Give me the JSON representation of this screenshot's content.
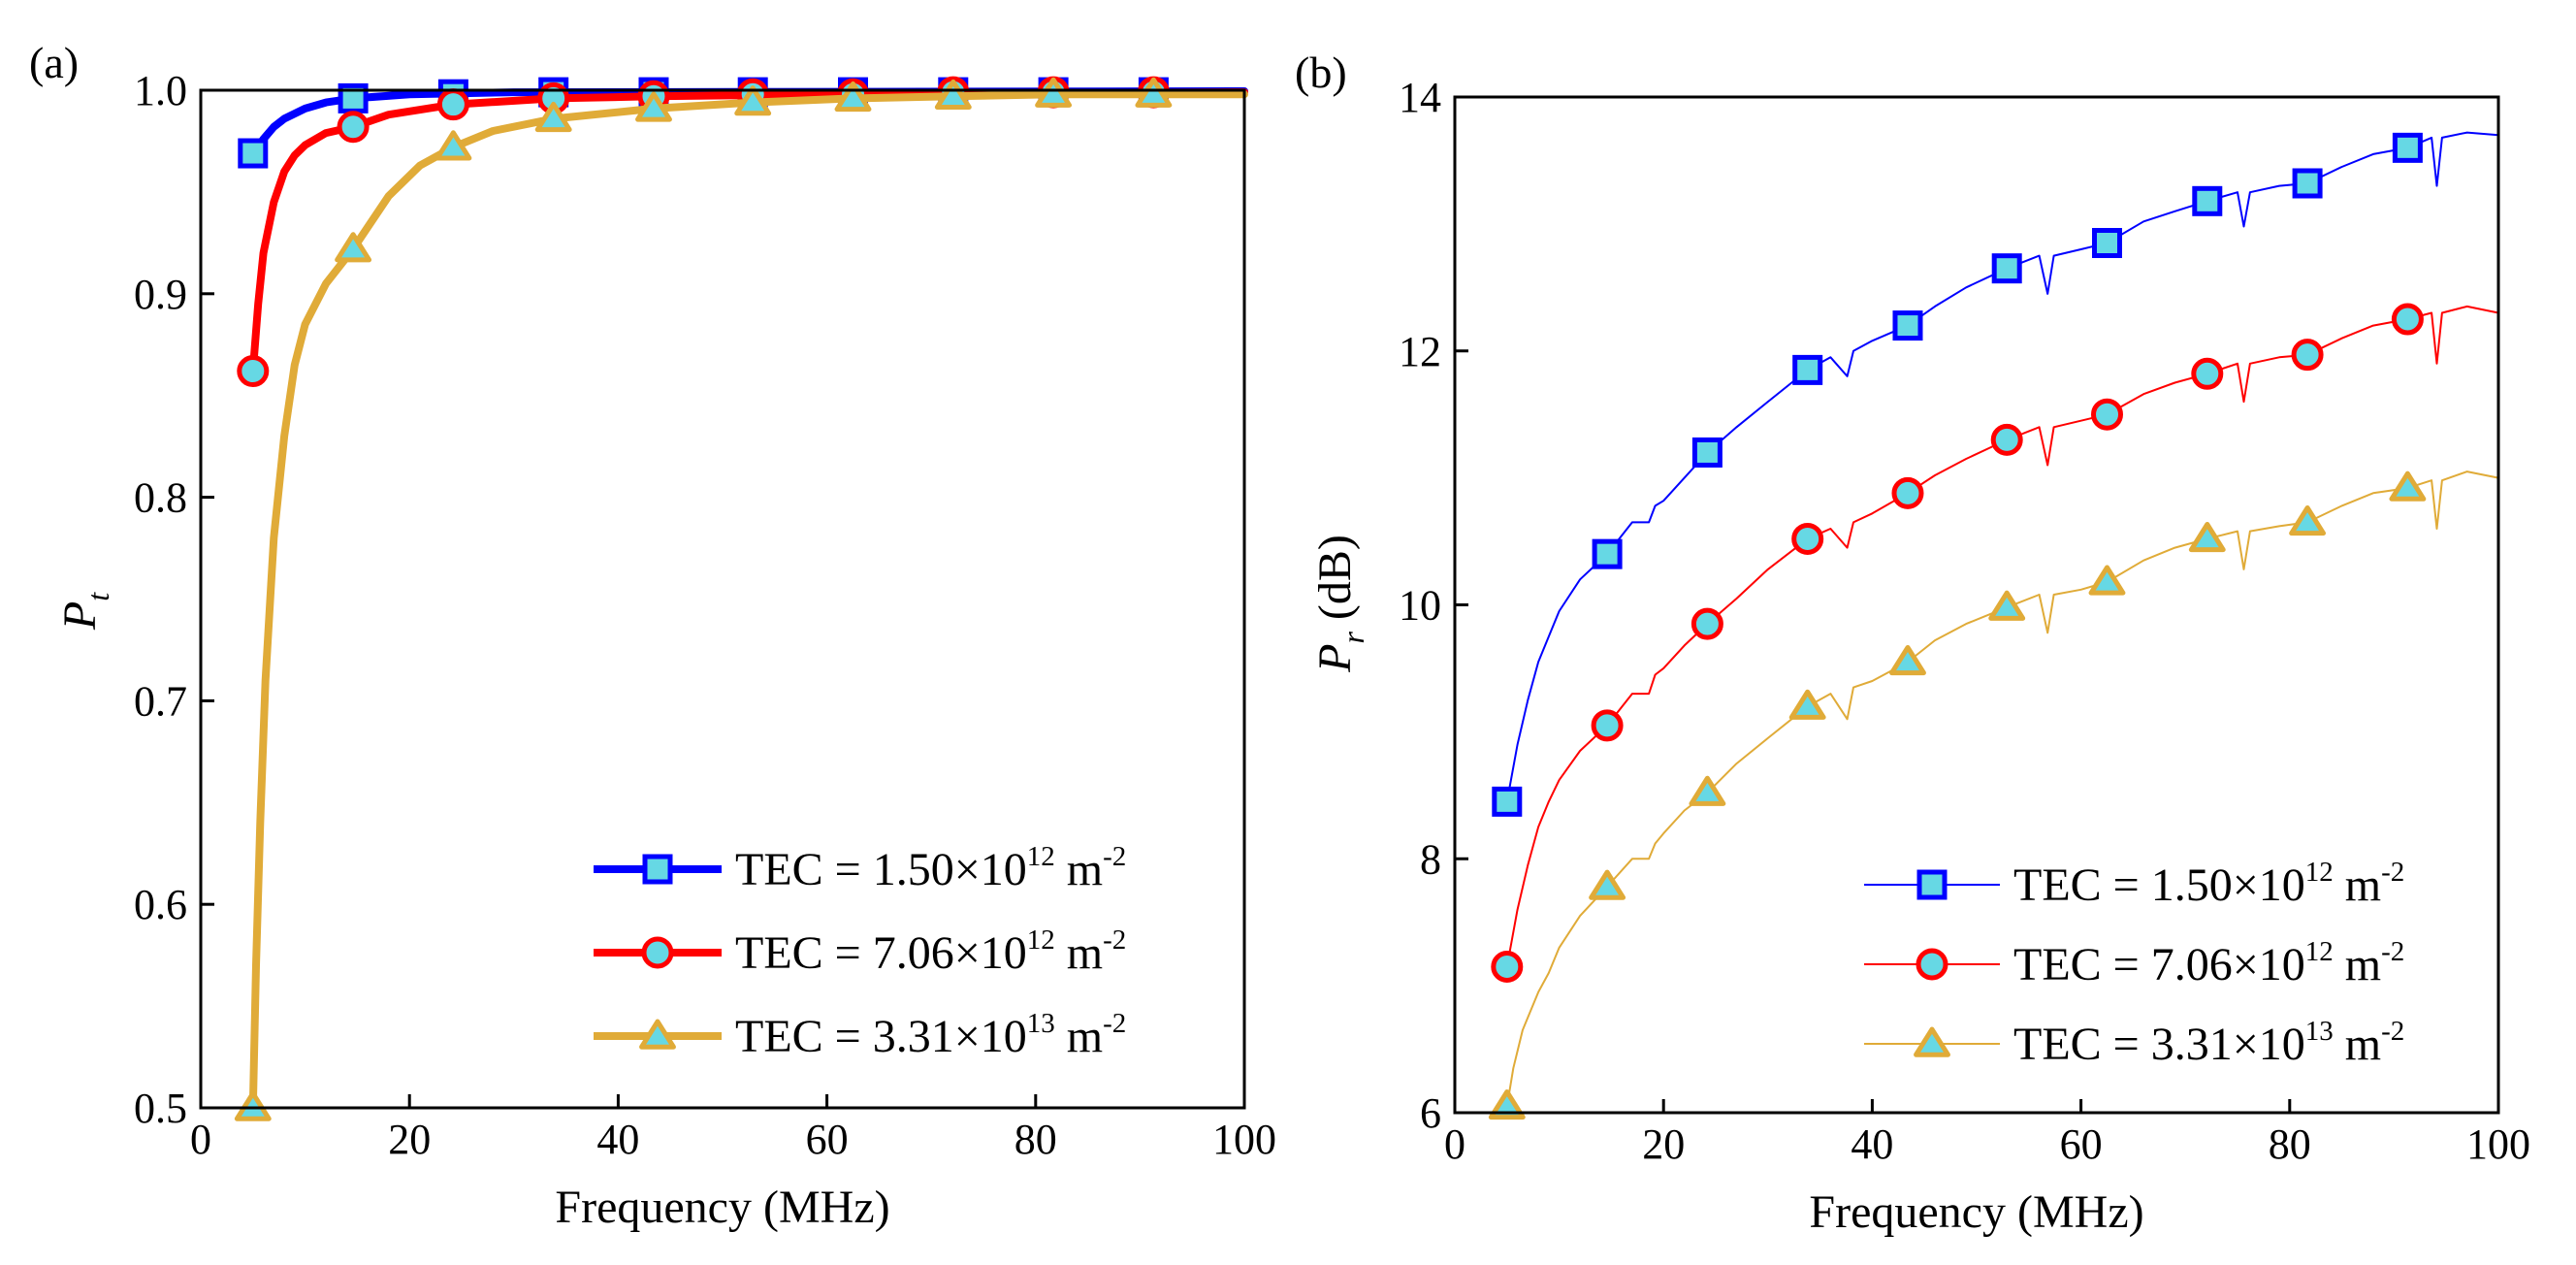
{
  "colors": {
    "blue": "#0000ff",
    "red": "#ff0000",
    "gold": "#e0ab38",
    "marker_fill": "#66d8e4"
  },
  "chart_data": [
    {
      "type": "line",
      "panel_label": "(a)",
      "xlabel": "Frequency (MHz)",
      "ylabel_main": "P",
      "ylabel_sub": "t",
      "ylabel_rest": "",
      "xlim": [
        0,
        100
      ],
      "ylim": [
        0.5,
        1.0
      ],
      "x_ticks": [
        0,
        20,
        40,
        60,
        80,
        100
      ],
      "y_ticks": [
        "0.5",
        "0.6",
        "0.7",
        "0.8",
        "0.9",
        "1.0"
      ],
      "legend_position": "bottom-right",
      "line_style": "thick",
      "series": [
        {
          "name": "TEC = 1.50×10^12 m^-2",
          "label_base": "TEC = 1.50×10",
          "label_exp": "12",
          "label_unit": "m",
          "label_unit_exp": "-2",
          "color": "#0000ff",
          "marker": "square",
          "marker_x": [
            5,
            14.6,
            24.2,
            33.8,
            43.4,
            52.9,
            62.5,
            72.1,
            81.7,
            91.3
          ],
          "marker_y": [
            0.969,
            0.996,
            0.998,
            0.999,
            0.999,
            0.999,
            0.999,
            0.999,
            0.999,
            0.999
          ],
          "curve": [
            [
              5,
              0.969
            ],
            [
              6,
              0.976
            ],
            [
              7,
              0.982
            ],
            [
              8,
              0.986
            ],
            [
              10,
              0.991
            ],
            [
              12,
              0.994
            ],
            [
              14.6,
              0.996
            ],
            [
              20,
              0.998
            ],
            [
              30,
              0.999
            ],
            [
              100,
              0.9995
            ]
          ]
        },
        {
          "name": "TEC = 7.06×10^12 m^-2",
          "label_base": "TEC = 7.06×10",
          "label_exp": "12",
          "label_unit": "m",
          "label_unit_exp": "-2",
          "color": "#ff0000",
          "marker": "circle",
          "marker_x": [
            5,
            14.6,
            24.2,
            33.8,
            43.4,
            52.9,
            62.5,
            72.1,
            81.7,
            91.3
          ],
          "marker_y": [
            0.862,
            0.982,
            0.993,
            0.996,
            0.997,
            0.998,
            0.998,
            0.999,
            0.999,
            0.999
          ],
          "curve": [
            [
              5,
              0.862
            ],
            [
              5.5,
              0.895
            ],
            [
              6,
              0.92
            ],
            [
              7,
              0.945
            ],
            [
              8,
              0.96
            ],
            [
              9,
              0.968
            ],
            [
              10,
              0.973
            ],
            [
              12,
              0.979
            ],
            [
              14.6,
              0.982
            ],
            [
              18,
              0.988
            ],
            [
              24.2,
              0.993
            ],
            [
              33.8,
              0.996
            ],
            [
              43.4,
              0.997
            ],
            [
              60,
              0.998
            ],
            [
              100,
              0.999
            ]
          ]
        },
        {
          "name": "TEC = 3.31×10^13 m^-2",
          "label_base": "TEC = 3.31×10",
          "label_exp": "13",
          "label_unit": "m",
          "label_unit_exp": "-2",
          "color": "#e0ab38",
          "marker": "triangle",
          "marker_x": [
            5,
            14.6,
            24.2,
            33.8,
            43.4,
            52.9,
            62.5,
            72.1,
            81.7,
            91.3
          ],
          "marker_y": [
            0.5,
            0.922,
            0.972,
            0.986,
            0.991,
            0.994,
            0.996,
            0.997,
            0.998,
            0.998
          ],
          "curve": [
            [
              5,
              0.5
            ],
            [
              5.3,
              0.57
            ],
            [
              5.7,
              0.64
            ],
            [
              6.2,
              0.71
            ],
            [
              7,
              0.78
            ],
            [
              8,
              0.83
            ],
            [
              9,
              0.865
            ],
            [
              10,
              0.885
            ],
            [
              12,
              0.905
            ],
            [
              14.6,
              0.922
            ],
            [
              18,
              0.948
            ],
            [
              21,
              0.963
            ],
            [
              24.2,
              0.972
            ],
            [
              28,
              0.98
            ],
            [
              33.8,
              0.986
            ],
            [
              43.4,
              0.991
            ],
            [
              52.9,
              0.994
            ],
            [
              62.5,
              0.996
            ],
            [
              72.1,
              0.997
            ],
            [
              81.7,
              0.998
            ],
            [
              100,
              0.998
            ]
          ]
        }
      ]
    },
    {
      "type": "line",
      "panel_label": "(b)",
      "xlabel": "Frequency (MHz)",
      "ylabel_main": "P",
      "ylabel_sub": "r",
      "ylabel_rest": " (dB)",
      "xlim": [
        0,
        100
      ],
      "ylim": [
        6,
        14
      ],
      "x_ticks": [
        0,
        20,
        40,
        60,
        80,
        100
      ],
      "y_ticks": [
        "6",
        "8",
        "10",
        "12",
        "14"
      ],
      "legend_position": "bottom-right",
      "line_style": "thin",
      "series": [
        {
          "name": "TEC = 1.50×10^12 m^-2",
          "label_base": "TEC = 1.50×10",
          "label_exp": "12",
          "label_unit": "m",
          "label_unit_exp": "-2",
          "color": "#0000ff",
          "marker": "square",
          "marker_x": [
            5,
            14.6,
            24.2,
            33.8,
            43.4,
            52.9,
            62.5,
            72.1,
            81.7,
            91.3
          ],
          "marker_y": [
            8.45,
            10.4,
            11.2,
            11.85,
            12.2,
            12.65,
            12.85,
            13.18,
            13.32,
            13.6
          ],
          "curve": [
            [
              5,
              8.45
            ],
            [
              6,
              8.9
            ],
            [
              7,
              9.25
            ],
            [
              8,
              9.55
            ],
            [
              9,
              9.75
            ],
            [
              10,
              9.95
            ],
            [
              12,
              10.2
            ],
            [
              14.6,
              10.4
            ],
            [
              17,
              10.65
            ],
            [
              18.6,
              10.65
            ],
            [
              19.2,
              10.78
            ],
            [
              20,
              10.82
            ],
            [
              22,
              11.0
            ],
            [
              24.2,
              11.2
            ],
            [
              27,
              11.4
            ],
            [
              30,
              11.6
            ],
            [
              33.8,
              11.85
            ],
            [
              36,
              11.95
            ],
            [
              37.6,
              11.8
            ],
            [
              38.2,
              12.0
            ],
            [
              40,
              12.08
            ],
            [
              43.4,
              12.2
            ],
            [
              46,
              12.35
            ],
            [
              49,
              12.5
            ],
            [
              52.9,
              12.65
            ],
            [
              56,
              12.75
            ],
            [
              56.8,
              12.45
            ],
            [
              57.4,
              12.75
            ],
            [
              60,
              12.8
            ],
            [
              62.5,
              12.85
            ],
            [
              66,
              13.02
            ],
            [
              69,
              13.1
            ],
            [
              72.1,
              13.18
            ],
            [
              75,
              13.25
            ],
            [
              75.6,
              12.98
            ],
            [
              76.2,
              13.25
            ],
            [
              79,
              13.3
            ],
            [
              81.7,
              13.32
            ],
            [
              85,
              13.45
            ],
            [
              88,
              13.55
            ],
            [
              91.3,
              13.6
            ],
            [
              93.6,
              13.68
            ],
            [
              94.1,
              13.3
            ],
            [
              94.6,
              13.68
            ],
            [
              97,
              13.72
            ],
            [
              100,
              13.7
            ]
          ]
        },
        {
          "name": "TEC = 7.06×10^12 m^-2",
          "label_base": "TEC = 7.06×10",
          "label_exp": "12",
          "label_unit": "m",
          "label_unit_exp": "-2",
          "color": "#ff0000",
          "marker": "circle",
          "marker_x": [
            5,
            14.6,
            24.2,
            33.8,
            43.4,
            52.9,
            62.5,
            72.1,
            81.7,
            91.3
          ],
          "marker_y": [
            7.15,
            9.05,
            9.85,
            10.52,
            10.88,
            11.3,
            11.5,
            11.82,
            11.97,
            12.25
          ],
          "curve": [
            [
              5,
              7.15
            ],
            [
              6,
              7.6
            ],
            [
              7,
              7.95
            ],
            [
              8,
              8.25
            ],
            [
              9,
              8.45
            ],
            [
              10,
              8.62
            ],
            [
              12,
              8.85
            ],
            [
              14.6,
              9.05
            ],
            [
              17,
              9.3
            ],
            [
              18.6,
              9.3
            ],
            [
              19.2,
              9.45
            ],
            [
              20,
              9.5
            ],
            [
              22,
              9.68
            ],
            [
              24.2,
              9.85
            ],
            [
              27,
              10.05
            ],
            [
              30,
              10.28
            ],
            [
              33.8,
              10.52
            ],
            [
              36,
              10.6
            ],
            [
              37.6,
              10.45
            ],
            [
              38.2,
              10.65
            ],
            [
              40,
              10.72
            ],
            [
              43.4,
              10.88
            ],
            [
              46,
              11.02
            ],
            [
              49,
              11.15
            ],
            [
              52.9,
              11.3
            ],
            [
              56,
              11.4
            ],
            [
              56.8,
              11.1
            ],
            [
              57.4,
              11.4
            ],
            [
              60,
              11.45
            ],
            [
              62.5,
              11.5
            ],
            [
              66,
              11.66
            ],
            [
              69,
              11.75
            ],
            [
              72.1,
              11.82
            ],
            [
              75,
              11.9
            ],
            [
              75.6,
              11.6
            ],
            [
              76.2,
              11.9
            ],
            [
              79,
              11.95
            ],
            [
              81.7,
              11.97
            ],
            [
              85,
              12.1
            ],
            [
              88,
              12.2
            ],
            [
              91.3,
              12.25
            ],
            [
              93.6,
              12.3
            ],
            [
              94.1,
              11.9
            ],
            [
              94.6,
              12.3
            ],
            [
              97,
              12.35
            ],
            [
              100,
              12.3
            ]
          ]
        },
        {
          "name": "TEC = 3.31×10^13 m^-2",
          "label_base": "TEC = 3.31×10",
          "label_exp": "13",
          "label_unit": "m",
          "label_unit_exp": "-2",
          "color": "#e0ab38",
          "marker": "triangle",
          "marker_x": [
            5,
            14.6,
            24.2,
            33.8,
            43.4,
            52.9,
            62.5,
            72.1,
            81.7,
            91.3
          ],
          "marker_y": [
            6.05,
            7.78,
            8.52,
            9.2,
            9.55,
            9.98,
            10.18,
            10.52,
            10.65,
            10.92
          ],
          "curve": [
            [
              5,
              6.05
            ],
            [
              5.6,
              6.35
            ],
            [
              6.5,
              6.65
            ],
            [
              8,
              6.95
            ],
            [
              9,
              7.1
            ],
            [
              10,
              7.3
            ],
            [
              12,
              7.55
            ],
            [
              14.6,
              7.78
            ],
            [
              17,
              8.0
            ],
            [
              18.6,
              8.0
            ],
            [
              19.2,
              8.12
            ],
            [
              20,
              8.2
            ],
            [
              22,
              8.38
            ],
            [
              24.2,
              8.52
            ],
            [
              27,
              8.75
            ],
            [
              30,
              8.95
            ],
            [
              33.8,
              9.2
            ],
            [
              36,
              9.3
            ],
            [
              37.6,
              9.1
            ],
            [
              38.2,
              9.35
            ],
            [
              40,
              9.4
            ],
            [
              43.4,
              9.55
            ],
            [
              46,
              9.72
            ],
            [
              49,
              9.85
            ],
            [
              52.9,
              9.98
            ],
            [
              56,
              10.08
            ],
            [
              56.8,
              9.78
            ],
            [
              57.4,
              10.08
            ],
            [
              60,
              10.12
            ],
            [
              62.5,
              10.18
            ],
            [
              66,
              10.35
            ],
            [
              69,
              10.45
            ],
            [
              72.1,
              10.52
            ],
            [
              75,
              10.58
            ],
            [
              75.6,
              10.28
            ],
            [
              76.2,
              10.58
            ],
            [
              79,
              10.62
            ],
            [
              81.7,
              10.65
            ],
            [
              85,
              10.78
            ],
            [
              88,
              10.88
            ],
            [
              91.3,
              10.92
            ],
            [
              93.6,
              10.98
            ],
            [
              94.1,
              10.6
            ],
            [
              94.6,
              10.98
            ],
            [
              97,
              11.05
            ],
            [
              100,
              11.0
            ]
          ]
        }
      ]
    }
  ]
}
